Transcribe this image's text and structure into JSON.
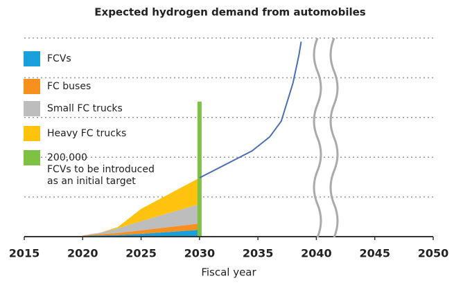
{
  "chart_data": {
    "type": "stacked_area",
    "title": "Expected hydrogen demand from automobiles",
    "xlabel": "Fiscal year",
    "x": [
      2020,
      2021.5,
      2023,
      2025,
      2030
    ],
    "series": [
      {
        "name": "FCVs",
        "color": "#1aa0db",
        "values": [
          0.02,
          0.03,
          0.04,
          0.07,
          0.17
        ]
      },
      {
        "name": "FC buses",
        "color": "#f7901e",
        "values": [
          0.01,
          0.03,
          0.05,
          0.09,
          0.16
        ]
      },
      {
        "name": "Small FC trucks",
        "color": "#bdbdbd",
        "values": [
          0,
          0.04,
          0.12,
          0.23,
          0.49
        ]
      },
      {
        "name": "Heavy FC trucks",
        "color": "#ffc20e",
        "values": [
          0,
          0,
          0.03,
          0.31,
          0.66
        ]
      }
    ],
    "line": {
      "color": "#4a6fb5",
      "x": [
        2030,
        2034.5,
        2036,
        2037,
        2038,
        2038.5,
        2038.7
      ],
      "values": [
        1.48,
        2.16,
        2.51,
        2.91,
        3.87,
        4.56,
        4.91
      ]
    },
    "target": {
      "x": 2030,
      "value": 3.4,
      "color": "#7dc242",
      "label": "200,000\nFCVs to be introduced\nas an initial target"
    },
    "xlim": [
      2015,
      2050
    ],
    "xticks": [
      2015,
      2020,
      2025,
      2030,
      2035,
      2040,
      2045,
      2050
    ],
    "ylim": [
      0,
      5
    ],
    "yticks": [
      1,
      2,
      3,
      4,
      5
    ],
    "grid": true
  }
}
